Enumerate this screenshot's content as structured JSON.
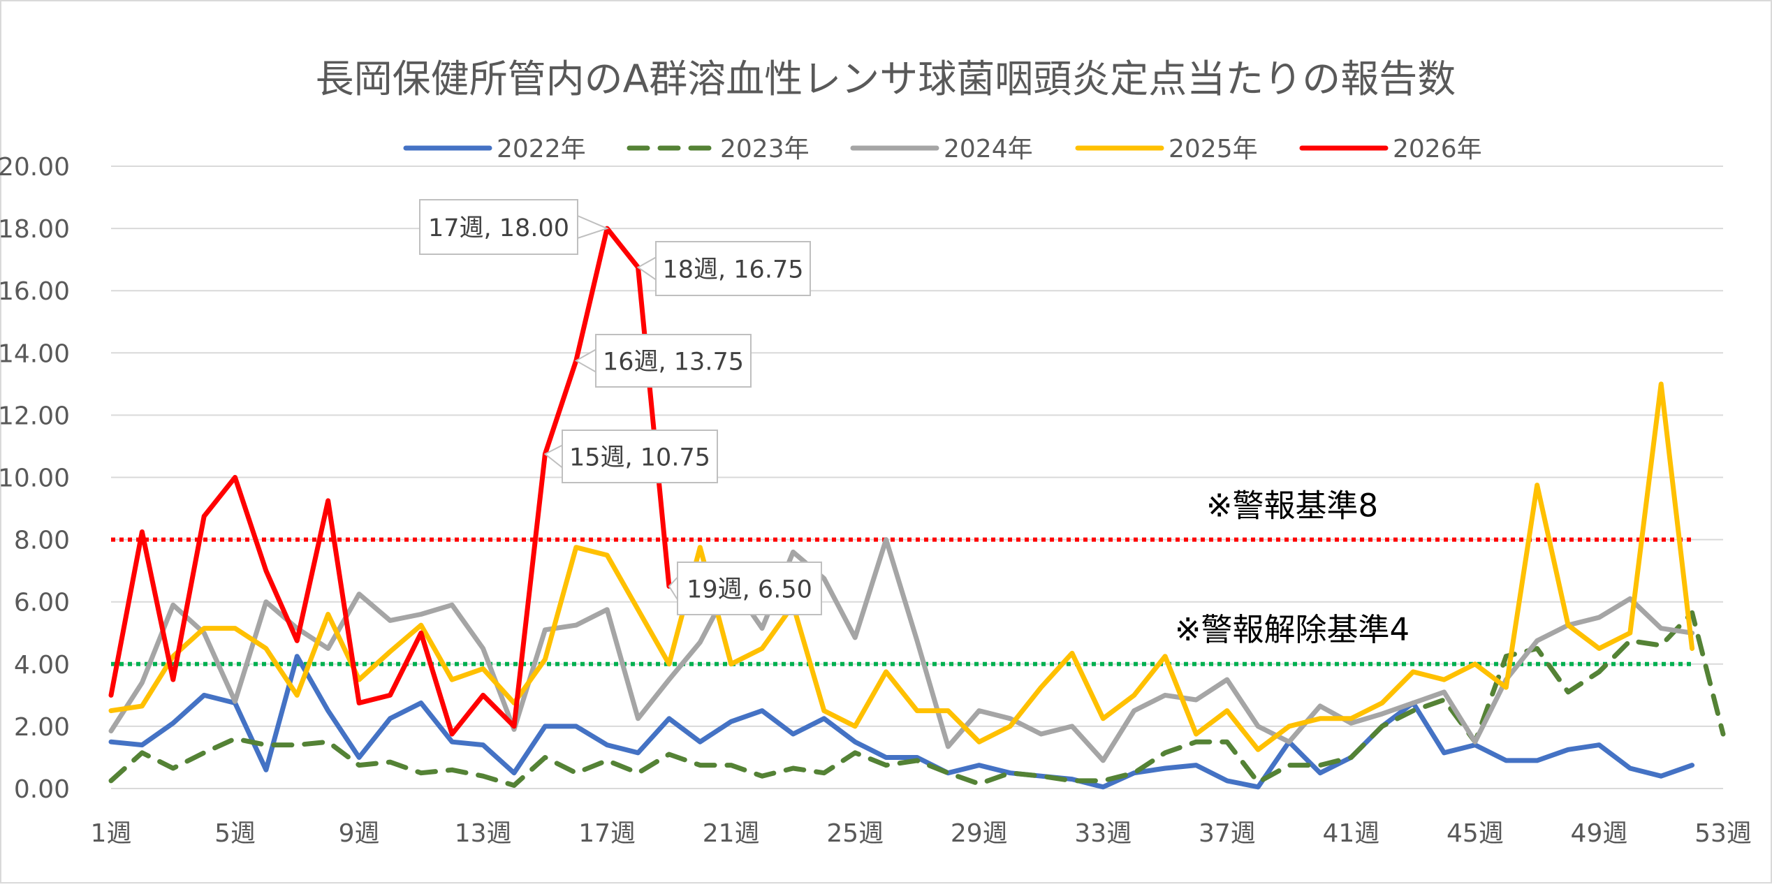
{
  "chart_data": {
    "type": "line",
    "title": "長岡保健所管内のA群溶血性レンサ球菌咽頭炎定点当たりの報告数",
    "xlabel": "",
    "ylabel": "",
    "ylim": [
      0,
      20
    ],
    "y_ticks": [
      "0.00",
      "2.00",
      "4.00",
      "6.00",
      "8.00",
      "10.00",
      "12.00",
      "14.00",
      "16.00",
      "18.00",
      "20.00"
    ],
    "x_ticks": [
      "1週",
      "5週",
      "9週",
      "13週",
      "17週",
      "21週",
      "25週",
      "29週",
      "33週",
      "37週",
      "41週",
      "45週",
      "49週",
      "53週"
    ],
    "legend_position": "top",
    "grid": true,
    "series": [
      {
        "name": "2022年",
        "color": "#4472C4",
        "dash": "solid",
        "values": [
          1.5,
          1.4,
          2.1,
          3.0,
          2.75,
          0.6,
          4.25,
          2.5,
          1.0,
          2.25,
          2.75,
          1.5,
          1.4,
          0.5,
          2.0,
          2.0,
          1.4,
          1.15,
          2.25,
          1.5,
          2.15,
          2.5,
          1.75,
          2.25,
          1.5,
          1.0,
          1.0,
          0.5,
          0.75,
          0.5,
          0.4,
          0.3,
          0.05,
          0.5,
          0.65,
          0.75,
          0.25,
          0.05,
          1.5,
          0.5,
          1.0,
          2.0,
          2.75,
          1.15,
          1.4,
          0.9,
          0.9,
          1.25,
          1.4,
          0.65,
          0.4,
          0.75
        ]
      },
      {
        "name": "2023年",
        "color": "#548235",
        "dash": "dashed",
        "values": [
          0.25,
          1.15,
          0.65,
          1.15,
          1.6,
          1.4,
          1.4,
          1.5,
          0.75,
          0.85,
          0.5,
          0.6,
          0.4,
          0.1,
          1.0,
          0.5,
          0.9,
          0.5,
          1.1,
          0.75,
          0.75,
          0.4,
          0.65,
          0.5,
          1.15,
          0.75,
          0.9,
          0.5,
          0.15,
          0.5,
          0.4,
          0.25,
          0.25,
          0.5,
          1.15,
          1.5,
          1.5,
          0.2,
          0.75,
          0.75,
          1.0,
          2.0,
          2.5,
          2.85,
          1.5,
          4.25,
          4.5,
          3.1,
          3.75,
          4.75,
          4.6,
          5.65,
          1.75
        ]
      },
      {
        "name": "2024年",
        "color": "#A5A5A5",
        "dash": "solid",
        "values": [
          1.85,
          3.4,
          5.9,
          5.0,
          2.8,
          6.0,
          5.15,
          4.5,
          6.25,
          5.4,
          5.6,
          5.9,
          4.5,
          1.9,
          5.1,
          5.25,
          5.75,
          2.25,
          3.5,
          4.7,
          6.6,
          5.15,
          7.6,
          6.75,
          4.85,
          8.0,
          4.75,
          1.35,
          2.5,
          2.25,
          1.75,
          2.0,
          0.9,
          2.5,
          3.0,
          2.85,
          3.5,
          2.0,
          1.5,
          2.65,
          2.1,
          2.4,
          2.75,
          3.1,
          1.5,
          3.5,
          4.75,
          5.25,
          5.5,
          6.1,
          5.15,
          5.0
        ]
      },
      {
        "name": "2025年",
        "color": "#FFC000",
        "dash": "solid",
        "values": [
          2.5,
          2.65,
          4.25,
          5.15,
          5.15,
          4.5,
          3.0,
          5.6,
          3.5,
          4.4,
          5.25,
          3.5,
          3.85,
          2.75,
          4.15,
          7.75,
          7.5,
          5.75,
          4.0,
          7.75,
          4.0,
          4.5,
          5.9,
          2.5,
          2.0,
          3.75,
          2.5,
          2.5,
          1.5,
          2.0,
          3.25,
          4.35,
          2.25,
          3.0,
          4.25,
          1.75,
          2.5,
          1.25,
          2.0,
          2.25,
          2.25,
          2.75,
          3.75,
          3.5,
          4.0,
          3.25,
          9.75,
          5.25,
          4.5,
          5.0,
          13.0,
          4.5
        ]
      },
      {
        "name": "2026年",
        "color": "#FF0000",
        "dash": "solid",
        "values": [
          3.0,
          8.25,
          3.5,
          8.75,
          10.0,
          7.0,
          4.75,
          9.25,
          2.75,
          3.0,
          5.0,
          1.75,
          3.0,
          2.0,
          10.75,
          13.75,
          18.0,
          16.75,
          6.5
        ]
      }
    ],
    "annotations": [
      {
        "series": "2026年",
        "week": 15,
        "text": "15週, 10.75"
      },
      {
        "series": "2026年",
        "week": 16,
        "text": "16週, 13.75"
      },
      {
        "series": "2026年",
        "week": 17,
        "text": "17週, 18.00"
      },
      {
        "series": "2026年",
        "week": 18,
        "text": "18週, 16.75"
      },
      {
        "series": "2026年",
        "week": 19,
        "text": "19週, 6.50"
      }
    ],
    "reference_lines": [
      {
        "value": 8,
        "label": "※警報基準8",
        "color": "#FF0000"
      },
      {
        "value": 4,
        "label": "※警報解除基準4",
        "color": "#00B050"
      }
    ]
  }
}
